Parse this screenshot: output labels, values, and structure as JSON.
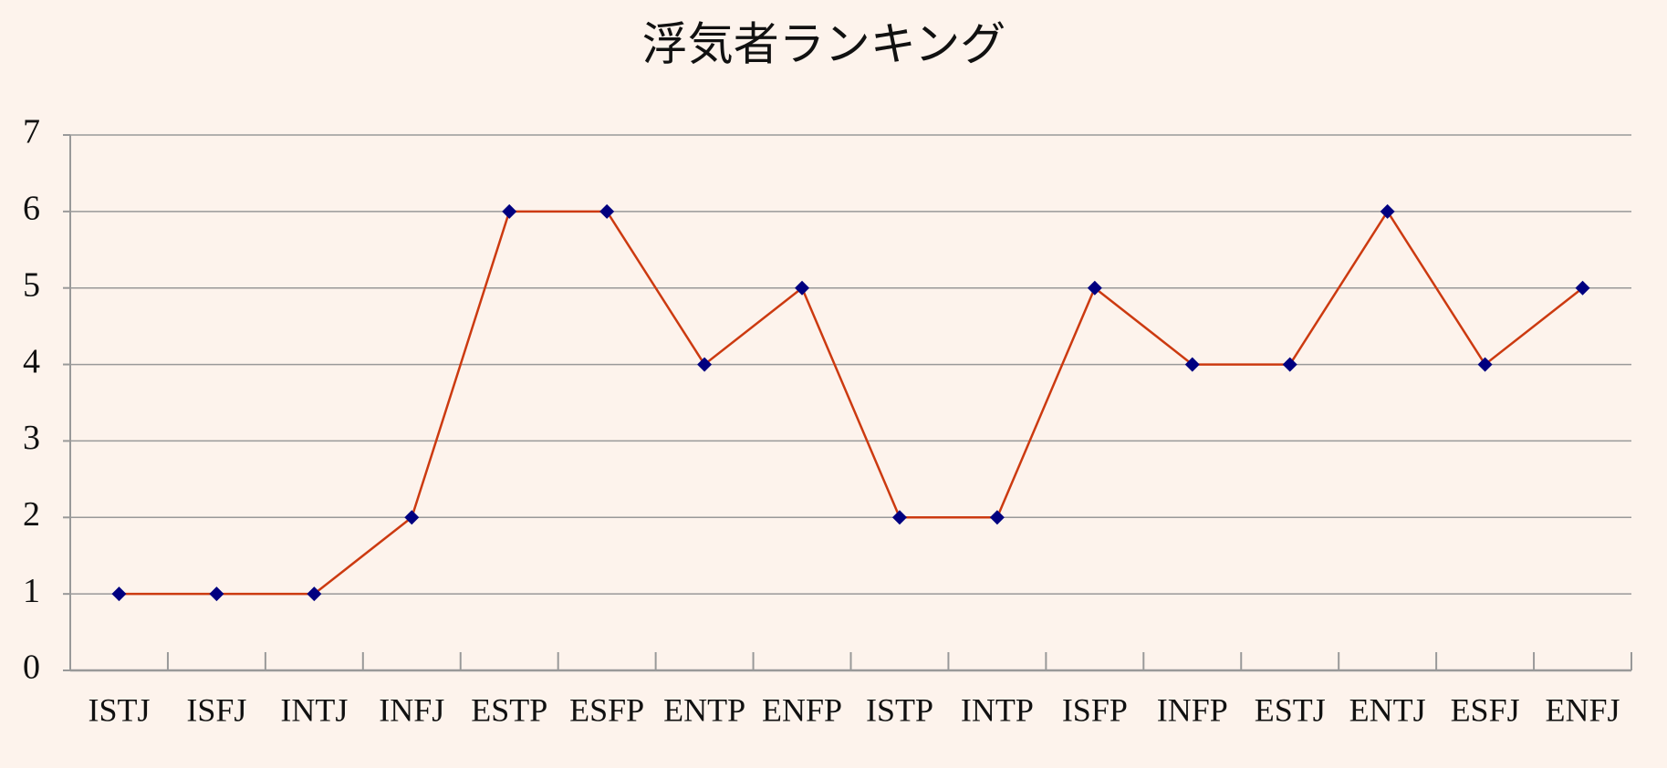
{
  "chart_data": {
    "type": "line",
    "title": "浮気者ランキング",
    "categories": [
      "ISTJ",
      "ISFJ",
      "INTJ",
      "INFJ",
      "ESTP",
      "ESFP",
      "ENTP",
      "ENFP",
      "ISTP",
      "INTP",
      "ISFP",
      "INFP",
      "ESTJ",
      "ENTJ",
      "ESFJ",
      "ENFJ"
    ],
    "series": [
      {
        "color": "#cc3a10",
        "marker_color": "#000080",
        "values": [
          1,
          1,
          1,
          2,
          6,
          6,
          4,
          5,
          2,
          2,
          5,
          4,
          4,
          6,
          4,
          5
        ]
      }
    ],
    "ylim": [
      0,
      7
    ],
    "yticks": [
      0,
      1,
      2,
      3,
      4,
      5,
      6,
      7
    ],
    "grid": true
  }
}
